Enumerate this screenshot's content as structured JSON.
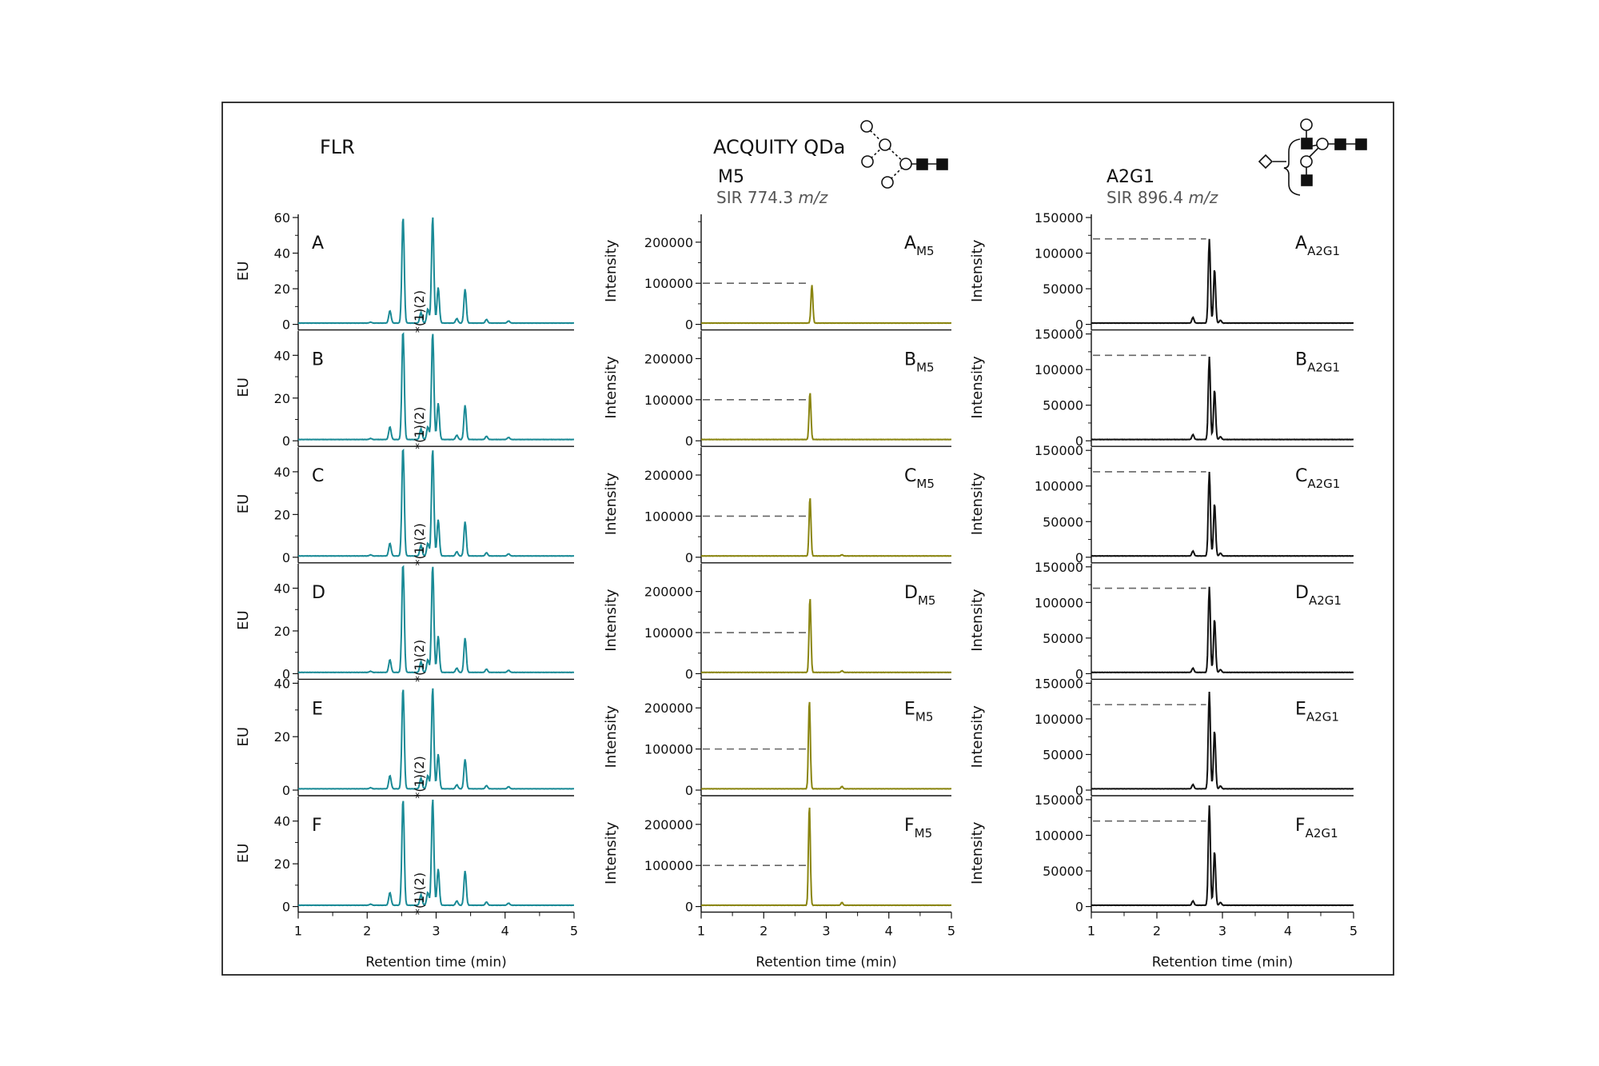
{
  "figure": {
    "columns": [
      {
        "key": "flr",
        "heading": "FLR",
        "subheading": "",
        "sir_prefix": "",
        "sir_value": "",
        "sir_unit": "",
        "ylabel": "EU",
        "xlabel": "Retention time (min)",
        "trace_color": "#1a8a96",
        "reference_level": null
      },
      {
        "key": "m5",
        "heading": "ACQUITY QDa",
        "subheading": "M5",
        "sir_prefix": "SIR ",
        "sir_value": "774.3",
        "sir_unit": "m/z",
        "ylabel": "Intensity",
        "xlabel": "Retention time (min)",
        "trace_color": "#8a8510",
        "reference_level": 100000
      },
      {
        "key": "a2g1",
        "heading": "",
        "subheading": "A2G1",
        "sir_prefix": "SIR ",
        "sir_value": "896.4",
        "sir_unit": "m/z",
        "ylabel": "Intensity",
        "xlabel": "Retention time (min)",
        "trace_color": "#111111",
        "reference_level": 120000
      }
    ],
    "icons": [
      "m5-glycan-structure-icon",
      "a2g1-glycan-structure-icon"
    ],
    "peak_marker": "*(1)(2)"
  },
  "chart_data": [
    {
      "type": "line",
      "column": "FLR",
      "xlabel": "Retention time (min)",
      "ylabel": "EU",
      "xlim": [
        1,
        5
      ],
      "xticks": [
        1,
        2,
        3,
        4,
        5
      ],
      "panels": [
        {
          "label": "A",
          "ylim": [
            0,
            60
          ],
          "yticks": [
            0,
            20,
            40,
            60
          ],
          "peaks": [
            [
              2.05,
              0.5
            ],
            [
              2.33,
              7
            ],
            [
              2.52,
              60
            ],
            [
              2.78,
              6
            ],
            [
              2.88,
              8
            ],
            [
              2.95,
              60
            ],
            [
              3.03,
              20
            ],
            [
              3.3,
              2.5
            ],
            [
              3.42,
              19
            ],
            [
              3.73,
              2
            ],
            [
              4.05,
              1.2
            ]
          ]
        },
        {
          "label": "B",
          "ylim": [
            0,
            50
          ],
          "yticks": [
            0,
            20,
            40
          ],
          "peaks": [
            [
              2.05,
              0.5
            ],
            [
              2.33,
              6
            ],
            [
              2.52,
              52
            ],
            [
              2.78,
              5
            ],
            [
              2.88,
              6
            ],
            [
              2.95,
              51
            ],
            [
              3.03,
              17
            ],
            [
              3.3,
              2
            ],
            [
              3.42,
              16
            ],
            [
              3.73,
              1.5
            ],
            [
              4.05,
              1
            ]
          ]
        },
        {
          "label": "C",
          "ylim": [
            0,
            50
          ],
          "yticks": [
            0,
            20,
            40
          ],
          "peaks": [
            [
              2.05,
              0.5
            ],
            [
              2.33,
              6
            ],
            [
              2.52,
              52
            ],
            [
              2.78,
              5
            ],
            [
              2.88,
              6
            ],
            [
              2.95,
              51
            ],
            [
              3.03,
              17
            ],
            [
              3.3,
              2
            ],
            [
              3.42,
              16
            ],
            [
              3.73,
              1.5
            ],
            [
              4.05,
              1
            ]
          ]
        },
        {
          "label": "D",
          "ylim": [
            0,
            50
          ],
          "yticks": [
            0,
            20,
            40
          ],
          "peaks": [
            [
              2.05,
              0.5
            ],
            [
              2.33,
              6
            ],
            [
              2.52,
              52
            ],
            [
              2.78,
              5
            ],
            [
              2.88,
              6
            ],
            [
              2.95,
              51
            ],
            [
              3.03,
              17
            ],
            [
              3.3,
              2
            ],
            [
              3.42,
              16
            ],
            [
              3.73,
              1.5
            ],
            [
              4.05,
              1
            ]
          ]
        },
        {
          "label": "E",
          "ylim": [
            0,
            40
          ],
          "yticks": [
            0,
            20,
            40
          ],
          "peaks": [
            [
              2.05,
              0.4
            ],
            [
              2.33,
              5
            ],
            [
              2.52,
              38
            ],
            [
              2.78,
              4
            ],
            [
              2.88,
              5
            ],
            [
              2.95,
              38
            ],
            [
              3.03,
              13
            ],
            [
              3.3,
              1.5
            ],
            [
              3.42,
              11
            ],
            [
              3.73,
              1.2
            ],
            [
              4.05,
              0.8
            ]
          ]
        },
        {
          "label": "F",
          "ylim": [
            0,
            50
          ],
          "yticks": [
            0,
            20,
            40
          ],
          "peaks": [
            [
              2.05,
              0.5
            ],
            [
              2.33,
              6
            ],
            [
              2.52,
              50
            ],
            [
              2.78,
              5
            ],
            [
              2.88,
              6
            ],
            [
              2.95,
              50
            ],
            [
              3.03,
              17
            ],
            [
              3.3,
              2
            ],
            [
              3.42,
              16
            ],
            [
              3.73,
              1.5
            ],
            [
              4.05,
              1
            ]
          ]
        }
      ]
    },
    {
      "type": "line",
      "column": "M5",
      "xlabel": "Retention time (min)",
      "ylabel": "Intensity",
      "xlim": [
        1,
        5
      ],
      "xticks": [
        1,
        2,
        3,
        4,
        5
      ],
      "reference_level": 100000,
      "panels": [
        {
          "label": "A",
          "subscript": "M5",
          "ylim": [
            0,
            260000
          ],
          "yticks": [
            0,
            100000,
            200000
          ],
          "peaks": [
            [
              2.77,
              93000
            ]
          ]
        },
        {
          "label": "B",
          "subscript": "M5",
          "ylim": [
            0,
            260000
          ],
          "yticks": [
            0,
            100000,
            200000
          ],
          "peaks": [
            [
              2.74,
              115000
            ]
          ]
        },
        {
          "label": "C",
          "subscript": "M5",
          "ylim": [
            0,
            260000
          ],
          "yticks": [
            0,
            100000,
            200000
          ],
          "peaks": [
            [
              2.74,
              143000
            ],
            [
              3.25,
              3000
            ]
          ]
        },
        {
          "label": "D",
          "subscript": "M5",
          "ylim": [
            0,
            260000
          ],
          "yticks": [
            0,
            100000,
            200000
          ],
          "peaks": [
            [
              2.74,
              182000
            ],
            [
              3.25,
              4000
            ]
          ]
        },
        {
          "label": "E",
          "subscript": "M5",
          "ylim": [
            0,
            260000
          ],
          "yticks": [
            0,
            100000,
            200000
          ],
          "peaks": [
            [
              2.73,
              216000
            ],
            [
              3.25,
              6000
            ]
          ]
        },
        {
          "label": "F",
          "subscript": "M5",
          "ylim": [
            0,
            260000
          ],
          "yticks": [
            0,
            100000,
            200000
          ],
          "peaks": [
            [
              2.73,
              243000
            ],
            [
              3.25,
              7000
            ]
          ]
        }
      ]
    },
    {
      "type": "line",
      "column": "A2G1",
      "xlabel": "Retention time (min)",
      "ylabel": "Intensity",
      "xlim": [
        1,
        5
      ],
      "xticks": [
        1,
        2,
        3,
        4,
        5
      ],
      "reference_level": 120000,
      "panels": [
        {
          "label": "A",
          "subscript": "A2G1",
          "ylim": [
            0,
            150000
          ],
          "yticks": [
            0,
            50000,
            100000,
            150000
          ],
          "peaks": [
            [
              2.55,
              8000
            ],
            [
              2.8,
              118000
            ],
            [
              2.88,
              76000
            ],
            [
              2.97,
              4000
            ]
          ]
        },
        {
          "label": "B",
          "subscript": "A2G1",
          "ylim": [
            0,
            150000
          ],
          "yticks": [
            0,
            50000,
            100000,
            150000
          ],
          "peaks": [
            [
              2.55,
              7000
            ],
            [
              2.8,
              116000
            ],
            [
              2.88,
              70000
            ],
            [
              2.97,
              4000
            ]
          ]
        },
        {
          "label": "C",
          "subscript": "A2G1",
          "ylim": [
            0,
            150000
          ],
          "yticks": [
            0,
            50000,
            100000,
            150000
          ],
          "peaks": [
            [
              2.55,
              7000
            ],
            [
              2.8,
              118000
            ],
            [
              2.88,
              74000
            ],
            [
              2.97,
              4000
            ]
          ]
        },
        {
          "label": "D",
          "subscript": "A2G1",
          "ylim": [
            0,
            150000
          ],
          "yticks": [
            0,
            50000,
            100000,
            150000
          ],
          "peaks": [
            [
              2.55,
              6000
            ],
            [
              2.8,
              120000
            ],
            [
              2.88,
              75000
            ],
            [
              2.97,
              4000
            ]
          ]
        },
        {
          "label": "E",
          "subscript": "A2G1",
          "ylim": [
            0,
            150000
          ],
          "yticks": [
            0,
            50000,
            100000,
            150000
          ],
          "peaks": [
            [
              2.55,
              6000
            ],
            [
              2.8,
              136000
            ],
            [
              2.88,
              82000
            ],
            [
              2.97,
              4000
            ]
          ]
        },
        {
          "label": "F",
          "subscript": "A2G1",
          "ylim": [
            0,
            150000
          ],
          "yticks": [
            0,
            50000,
            100000,
            150000
          ],
          "peaks": [
            [
              2.55,
              6000
            ],
            [
              2.8,
              140000
            ],
            [
              2.88,
              76000
            ],
            [
              2.97,
              4000
            ]
          ]
        }
      ]
    }
  ]
}
